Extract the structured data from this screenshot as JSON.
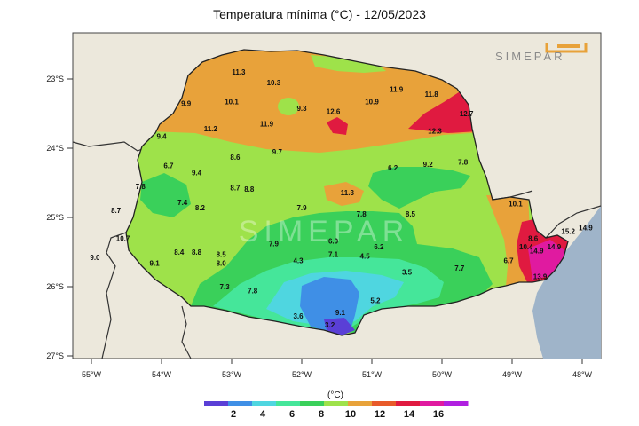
{
  "title": "Temperatura mínima (°C) - 12/05/2023",
  "brand": "SIMEPAR",
  "watermark": "SIMEPAR",
  "colors": {
    "frame_bg": "#ece8dc",
    "ocean": "#9fb4c9",
    "state_base": "#9ee24a"
  },
  "axes": {
    "lat_ticks": [
      "23°S",
      "24°S",
      "25°S",
      "26°S",
      "27°S"
    ],
    "lon_ticks": [
      "55°W",
      "54°W",
      "53°W",
      "52°W",
      "51°W",
      "50°W",
      "49°W",
      "48°W"
    ]
  },
  "colorbar": {
    "unit": "(°C)",
    "labels": [
      "2",
      "4",
      "6",
      "8",
      "10",
      "12",
      "14",
      "16"
    ],
    "colors": [
      "#5a3fd6",
      "#3f8fe6",
      "#4fd6e0",
      "#45e69a",
      "#3ad05a",
      "#9ee24a",
      "#e8a23a",
      "#e85a2a",
      "#e01a40",
      "#e01aa0",
      "#b020e0"
    ]
  },
  "stations": [
    {
      "v": "11.3",
      "lon": -52.9,
      "lat": -22.9
    },
    {
      "v": "10.3",
      "lon": -52.4,
      "lat": -23.05
    },
    {
      "v": "9.9",
      "lon": -53.65,
      "lat": -23.35
    },
    {
      "v": "10.1",
      "lon": -53.0,
      "lat": -23.33
    },
    {
      "v": "9.3",
      "lon": -52.0,
      "lat": -23.42
    },
    {
      "v": "12.6",
      "lon": -51.55,
      "lat": -23.47
    },
    {
      "v": "10.9",
      "lon": -51.0,
      "lat": -23.33
    },
    {
      "v": "11.9",
      "lon": -50.65,
      "lat": -23.15
    },
    {
      "v": "11.8",
      "lon": -50.15,
      "lat": -23.22
    },
    {
      "v": "12.7",
      "lon": -49.65,
      "lat": -23.5
    },
    {
      "v": "11.2",
      "lon": -53.3,
      "lat": -23.72
    },
    {
      "v": "11.9",
      "lon": -52.5,
      "lat": -23.65
    },
    {
      "v": "12.3",
      "lon": -50.1,
      "lat": -23.75
    },
    {
      "v": "9.4",
      "lon": -54.0,
      "lat": -23.83
    },
    {
      "v": "8.6",
      "lon": -52.95,
      "lat": -24.13
    },
    {
      "v": "9.7",
      "lon": -52.35,
      "lat": -24.05
    },
    {
      "v": "6.7",
      "lon": -53.9,
      "lat": -24.25
    },
    {
      "v": "9.4",
      "lon": -53.5,
      "lat": -24.35
    },
    {
      "v": "6.2",
      "lon": -50.7,
      "lat": -24.28
    },
    {
      "v": "9.2",
      "lon": -50.2,
      "lat": -24.23
    },
    {
      "v": "7.8",
      "lon": -49.7,
      "lat": -24.2
    },
    {
      "v": "7.8",
      "lon": -54.3,
      "lat": -24.55
    },
    {
      "v": "8.7",
      "lon": -52.95,
      "lat": -24.57
    },
    {
      "v": "8.8",
      "lon": -52.75,
      "lat": -24.59
    },
    {
      "v": "11.3",
      "lon": -51.35,
      "lat": -24.64
    },
    {
      "v": "7.4",
      "lon": -53.7,
      "lat": -24.78
    },
    {
      "v": "8.2",
      "lon": -53.45,
      "lat": -24.86
    },
    {
      "v": "8.7",
      "lon": -54.65,
      "lat": -24.9
    },
    {
      "v": "7.9",
      "lon": -52.0,
      "lat": -24.86
    },
    {
      "v": "10.1",
      "lon": -48.95,
      "lat": -24.8
    },
    {
      "v": "7.8",
      "lon": -51.15,
      "lat": -24.95
    },
    {
      "v": "8.5",
      "lon": -50.45,
      "lat": -24.95
    },
    {
      "v": "10.7",
      "lon": -54.55,
      "lat": -25.3
    },
    {
      "v": "7.9",
      "lon": -52.4,
      "lat": -25.38
    },
    {
      "v": "6.0",
      "lon": -51.55,
      "lat": -25.34
    },
    {
      "v": "6.2",
      "lon": -50.9,
      "lat": -25.42
    },
    {
      "v": "8.6",
      "lon": -48.7,
      "lat": -25.3
    },
    {
      "v": "10.4",
      "lon": -48.8,
      "lat": -25.42
    },
    {
      "v": "15.2",
      "lon": -48.2,
      "lat": -25.2
    },
    {
      "v": "14.9",
      "lon": -47.95,
      "lat": -25.15
    },
    {
      "v": "8.4",
      "lon": -53.75,
      "lat": -25.5
    },
    {
      "v": "8.8",
      "lon": -53.5,
      "lat": -25.5
    },
    {
      "v": "8.5",
      "lon": -53.15,
      "lat": -25.53
    },
    {
      "v": "7.1",
      "lon": -51.55,
      "lat": -25.53
    },
    {
      "v": "4.5",
      "lon": -51.1,
      "lat": -25.56
    },
    {
      "v": "14.9",
      "lon": -48.4,
      "lat": -25.42
    },
    {
      "v": "14.9",
      "lon": -48.65,
      "lat": -25.48
    },
    {
      "v": "9.0",
      "lon": -54.95,
      "lat": -25.58
    },
    {
      "v": "9.1",
      "lon": -54.1,
      "lat": -25.66
    },
    {
      "v": "8.0",
      "lon": -53.15,
      "lat": -25.66
    },
    {
      "v": "4.3",
      "lon": -52.05,
      "lat": -25.62
    },
    {
      "v": "6.7",
      "lon": -49.05,
      "lat": -25.62
    },
    {
      "v": "7.7",
      "lon": -49.75,
      "lat": -25.73
    },
    {
      "v": "3.5",
      "lon": -50.5,
      "lat": -25.79
    },
    {
      "v": "13.9",
      "lon": -48.6,
      "lat": -25.85
    },
    {
      "v": "7.3",
      "lon": -53.1,
      "lat": -26.0
    },
    {
      "v": "7.8",
      "lon": -52.7,
      "lat": -26.06
    },
    {
      "v": "5.2",
      "lon": -50.95,
      "lat": -26.2
    },
    {
      "v": "3.6",
      "lon": -52.05,
      "lat": -26.42
    },
    {
      "v": "9.1",
      "lon": -51.45,
      "lat": -26.37
    },
    {
      "v": "3.2",
      "lon": -51.6,
      "lat": -26.55
    }
  ]
}
